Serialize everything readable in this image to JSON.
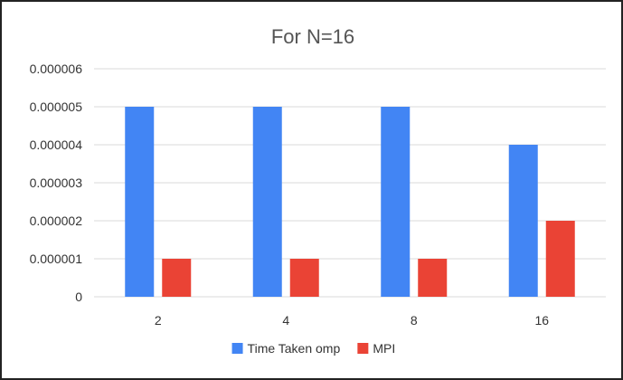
{
  "chart_data": {
    "type": "bar",
    "title": "For N=16",
    "categories": [
      "2",
      "4",
      "8",
      "16"
    ],
    "series": [
      {
        "name": "Time Taken omp",
        "color": "#4285f4",
        "values": [
          5e-06,
          5e-06,
          5e-06,
          4e-06
        ]
      },
      {
        "name": "MPI",
        "color": "#ea4335",
        "values": [
          1e-06,
          1e-06,
          1e-06,
          2e-06
        ]
      }
    ],
    "ylim": [
      0,
      6e-06
    ],
    "yticks": [
      "0",
      "0.000001",
      "0.000002",
      "0.000003",
      "0.000004",
      "0.000005",
      "0.000006"
    ],
    "grid": true,
    "legend_position": "bottom"
  }
}
